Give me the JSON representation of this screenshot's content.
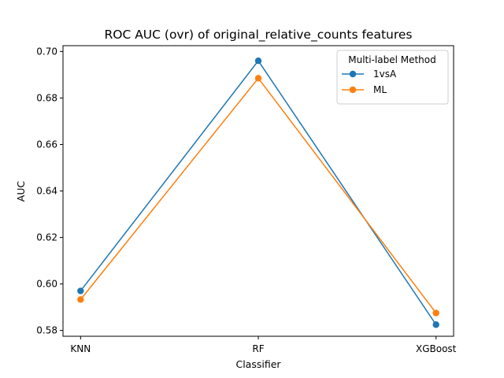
{
  "chart_data": {
    "type": "line",
    "title": "ROC AUC (ovr) of original_relative_counts features",
    "xlabel": "Classifier",
    "ylabel": "AUC",
    "categories": [
      "KNN",
      "RF",
      "XGBoost"
    ],
    "ylim": [
      0.5775,
      0.7025
    ],
    "yticks": [
      0.58,
      0.6,
      0.62,
      0.64,
      0.66,
      0.68,
      0.7
    ],
    "ytick_labels": [
      "0.58",
      "0.60",
      "0.62",
      "0.64",
      "0.66",
      "0.68",
      "0.70"
    ],
    "grid": false,
    "legend": {
      "title": "Multi-label Method",
      "placement": "top-right"
    },
    "series": [
      {
        "name": "1vsA",
        "values": [
          0.597,
          0.696,
          0.5825
        ],
        "color": "#1f77b4"
      },
      {
        "name": "ML",
        "values": [
          0.5933,
          0.6885,
          0.5875
        ],
        "color": "#ff7f0e"
      }
    ]
  }
}
